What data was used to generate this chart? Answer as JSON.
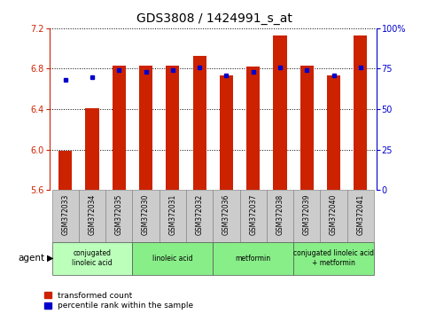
{
  "title": "GDS3808 / 1424991_s_at",
  "samples": [
    "GSM372033",
    "GSM372034",
    "GSM372035",
    "GSM372030",
    "GSM372031",
    "GSM372032",
    "GSM372036",
    "GSM372037",
    "GSM372038",
    "GSM372039",
    "GSM372040",
    "GSM372041"
  ],
  "transformed_count": [
    5.99,
    6.41,
    6.83,
    6.83,
    6.83,
    6.93,
    6.73,
    6.82,
    7.13,
    6.83,
    6.73,
    7.13
  ],
  "percentile_rank": [
    68,
    70,
    74,
    73,
    74,
    76,
    71,
    73,
    76,
    74,
    71,
    76
  ],
  "ylim_left": [
    5.6,
    7.2
  ],
  "ylim_right": [
    0,
    100
  ],
  "yticks_left": [
    5.6,
    6.0,
    6.4,
    6.8,
    7.2
  ],
  "yticks_right": [
    0,
    25,
    50,
    75,
    100
  ],
  "ytick_labels_right": [
    "0",
    "25",
    "50",
    "75",
    "100%"
  ],
  "bar_color": "#cc2200",
  "dot_color": "#0000cc",
  "bar_bottom": 5.6,
  "agents": [
    {
      "label": "conjugated\nlinoleic acid",
      "start": 0,
      "end": 3,
      "color": "#bbffbb"
    },
    {
      "label": "linoleic acid",
      "start": 3,
      "end": 6,
      "color": "#88ee88"
    },
    {
      "label": "metformin",
      "start": 6,
      "end": 9,
      "color": "#88ee88"
    },
    {
      "label": "conjugated linoleic acid\n+ metformin",
      "start": 9,
      "end": 12,
      "color": "#88ee88"
    }
  ],
  "sample_box_color": "#cccccc",
  "legend_items": [
    {
      "label": "transformed count",
      "color": "#cc2200"
    },
    {
      "label": "percentile rank within the sample",
      "color": "#0000cc"
    }
  ],
  "title_fontsize": 10,
  "tick_fontsize": 7,
  "bar_width": 0.5,
  "n_samples": 12
}
